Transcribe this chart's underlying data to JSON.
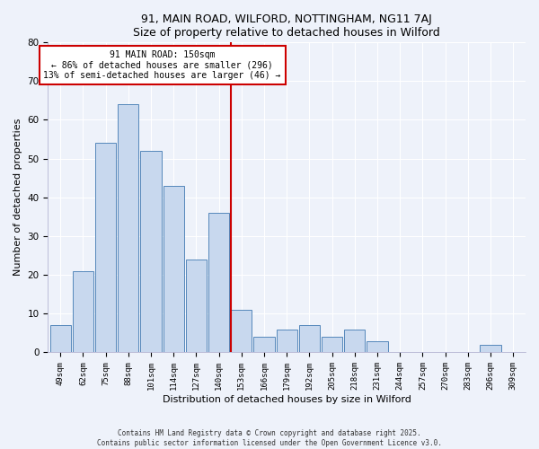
{
  "title": "91, MAIN ROAD, WILFORD, NOTTINGHAM, NG11 7AJ",
  "subtitle": "Size of property relative to detached houses in Wilford",
  "xlabel": "Distribution of detached houses by size in Wilford",
  "ylabel": "Number of detached properties",
  "bar_labels": [
    "49sqm",
    "62sqm",
    "75sqm",
    "88sqm",
    "101sqm",
    "114sqm",
    "127sqm",
    "140sqm",
    "153sqm",
    "166sqm",
    "179sqm",
    "192sqm",
    "205sqm",
    "218sqm",
    "231sqm",
    "244sqm",
    "257sqm",
    "270sqm",
    "283sqm",
    "296sqm",
    "309sqm"
  ],
  "bar_values": [
    7,
    21,
    54,
    64,
    52,
    43,
    24,
    36,
    11,
    4,
    6,
    7,
    4,
    6,
    3,
    0,
    0,
    0,
    0,
    2,
    0
  ],
  "bar_color": "#c8d8ee",
  "bar_edge_color": "#5588bb",
  "vline_index": 8,
  "vline_color": "#cc0000",
  "annotation_title": "91 MAIN ROAD: 150sqm",
  "annotation_line1": "← 86% of detached houses are smaller (296)",
  "annotation_line2": "13% of semi-detached houses are larger (46) →",
  "annotation_box_color": "#ffffff",
  "annotation_box_edge": "#cc0000",
  "ylim": [
    0,
    80
  ],
  "yticks": [
    0,
    10,
    20,
    30,
    40,
    50,
    60,
    70,
    80
  ],
  "background_color": "#eef2fa",
  "grid_color": "#ffffff",
  "footer1": "Contains HM Land Registry data © Crown copyright and database right 2025.",
  "footer2": "Contains public sector information licensed under the Open Government Licence v3.0."
}
